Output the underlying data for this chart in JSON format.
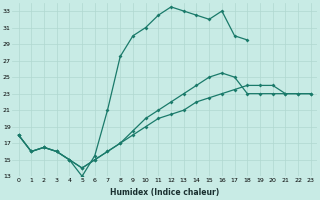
{
  "xlabel": "Humidex (Indice chaleur)",
  "bg_color": "#c8ebe5",
  "grid_color": "#b0d8d0",
  "line_color": "#1a7a6a",
  "xlim": [
    -0.5,
    23.5
  ],
  "ylim": [
    13,
    34
  ],
  "xticks": [
    0,
    1,
    2,
    3,
    4,
    5,
    6,
    7,
    8,
    9,
    10,
    11,
    12,
    13,
    14,
    15,
    16,
    17,
    18,
    19,
    20,
    21,
    22,
    23
  ],
  "yticks": [
    13,
    15,
    17,
    19,
    21,
    23,
    25,
    27,
    29,
    31,
    33
  ],
  "line1_x": [
    0,
    1,
    2,
    3,
    4,
    5,
    6,
    7,
    8,
    9,
    10,
    11,
    12,
    13,
    14,
    15,
    16,
    17,
    18
  ],
  "line1_y": [
    18,
    16,
    16.5,
    16,
    15,
    13,
    15.5,
    21,
    27.5,
    30,
    31,
    32.5,
    33.5,
    33,
    32.5,
    32,
    33,
    30,
    29.5
  ],
  "line2_x": [
    0,
    1,
    2,
    3,
    4,
    5,
    6,
    7,
    8,
    9,
    10,
    11,
    12,
    13,
    14,
    15,
    16,
    17,
    18,
    19,
    20,
    21,
    22,
    23
  ],
  "line2_y": [
    18,
    16,
    16.5,
    16,
    15,
    14,
    15,
    16,
    17,
    18.5,
    20,
    21,
    22,
    23,
    24,
    25,
    25.5,
    25,
    23,
    23,
    23,
    23,
    23,
    23
  ],
  "line3_x": [
    0,
    1,
    2,
    3,
    4,
    5,
    6,
    7,
    8,
    9,
    10,
    11,
    12,
    13,
    14,
    15,
    16,
    17,
    18,
    19,
    20,
    21,
    22,
    23
  ],
  "line3_y": [
    18,
    16,
    16.5,
    16,
    15,
    14,
    15,
    16,
    17,
    18,
    19,
    20,
    20.5,
    21,
    22,
    22.5,
    23,
    23.5,
    24,
    24,
    24,
    23,
    23,
    23
  ]
}
